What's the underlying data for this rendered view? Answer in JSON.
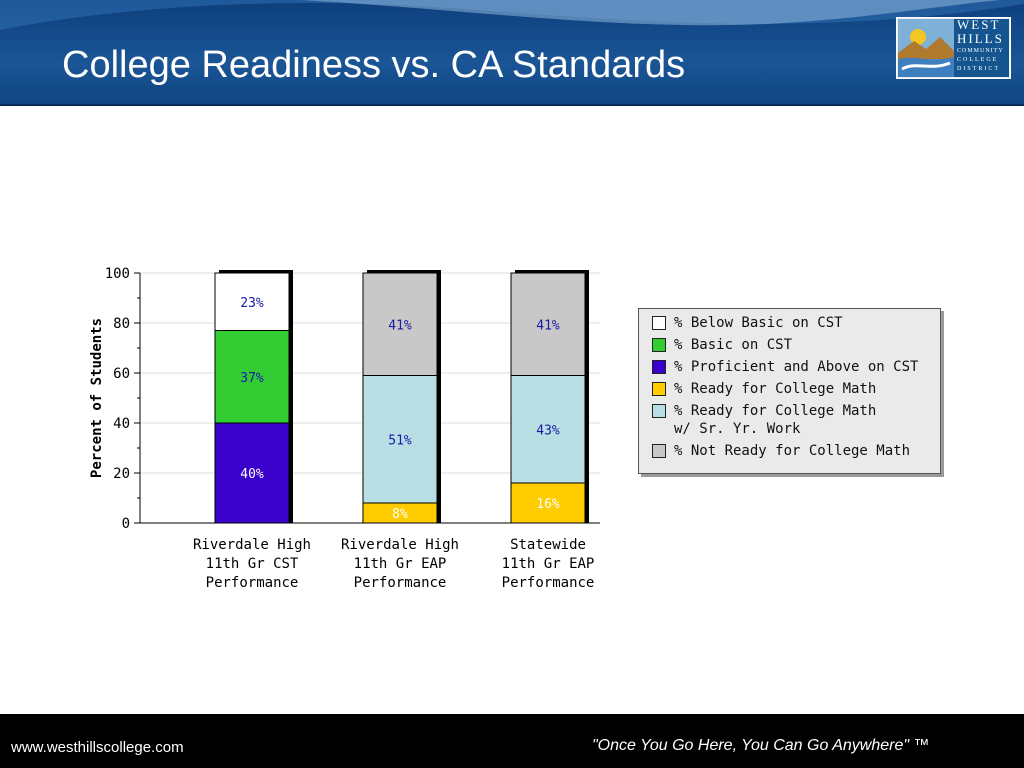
{
  "slide": {
    "title": "College Readiness vs. CA Standards",
    "logo": {
      "line1": "WEST",
      "line2": "HILLS",
      "line3": "COMMUNITY",
      "line4": "COLLEGE",
      "line5": "DISTRICT"
    },
    "footer": {
      "url": "www.westhillscollege.com",
      "tagline": "\"Once You Go Here, You Can Go Anywhere\" ™"
    }
  },
  "chart_data": {
    "type": "bar",
    "stacked": true,
    "ylabel": "Percent of Students",
    "ylim": [
      0,
      100
    ],
    "yticks": [
      0,
      20,
      40,
      60,
      80,
      100
    ],
    "categories": [
      [
        "Riverdale High",
        "11th Gr CST",
        "Performance"
      ],
      [
        "Riverdale High",
        "11th Gr EAP",
        "Performance"
      ],
      [
        "Statewide",
        "11th Gr EAP",
        "Performance"
      ]
    ],
    "legend_position": "right",
    "series": [
      {
        "name": "% Below Basic on CST",
        "color": "#ffffff",
        "label_color": "#1a1aa6",
        "values": [
          23,
          0,
          0
        ]
      },
      {
        "name": "% Basic on CST",
        "color": "#33cc33",
        "label_color": "#1a1aa6",
        "values": [
          37,
          0,
          0
        ]
      },
      {
        "name": "% Proficient and Above on CST",
        "color": "#3a00cc",
        "label_color": "#ffffff",
        "values": [
          40,
          0,
          0
        ]
      },
      {
        "name": "% Ready for College Math",
        "color": "#ffcc00",
        "label_color": "#ffffff",
        "values": [
          0,
          8,
          16
        ]
      },
      {
        "name": "% Ready for College Math\nw/ Sr. Yr. Work",
        "color": "#b8e0e4",
        "label_color": "#1a1aa6",
        "values": [
          0,
          51,
          43
        ]
      },
      {
        "name": "% Not Ready for College Math",
        "color": "#c8c8c8",
        "label_color": "#1a1aa6",
        "values": [
          0,
          41,
          41
        ]
      }
    ],
    "stack_order": [
      [
        "% Proficient and Above on CST",
        "% Basic on CST",
        "% Below Basic on CST"
      ],
      [
        "% Ready for College Math",
        "% Ready for College Math\nw/ Sr. Yr. Work",
        "% Not Ready for College Math"
      ],
      [
        "% Ready for College Math",
        "% Ready for College Math\nw/ Sr. Yr. Work",
        "% Not Ready for College Math"
      ]
    ],
    "data_labels": [
      [
        "40%",
        "37%",
        "23%"
      ],
      [
        "8%",
        "51%",
        "41%"
      ],
      [
        "16%",
        "43%",
        "41%"
      ]
    ]
  }
}
